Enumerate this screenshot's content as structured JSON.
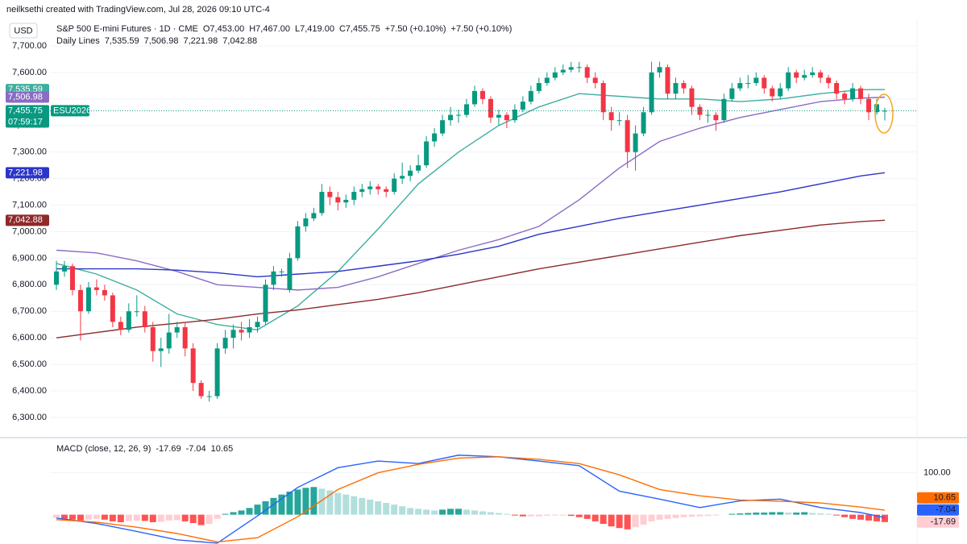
{
  "header": {
    "credit": "neilksethi created with TradingView.com, Jul 28, 2026 09:10 UTC-4"
  },
  "chart_data": [
    {
      "type": "candlestick",
      "currency": "USD",
      "title": "S&P 500 E-mini Futures · 1D · CME",
      "ohlc_legend": [
        "O7,453.00",
        "H7,467.00",
        "L7,419.00",
        "C7,455.75"
      ],
      "change": [
        "+7.50 (+0.10%)",
        "+7.50 (+0.10%)"
      ],
      "up_color": "#089981",
      "down_color": "#f23645",
      "ohlc": [
        [
          6800,
          6890,
          6780,
          6850
        ],
        [
          6850,
          6890,
          6830,
          6870
        ],
        [
          6870,
          6880,
          6760,
          6780
        ],
        [
          6780,
          6800,
          6590,
          6700
        ],
        [
          6700,
          6810,
          6690,
          6790
        ],
        [
          6790,
          6820,
          6760,
          6780
        ],
        [
          6780,
          6800,
          6740,
          6760
        ],
        [
          6760,
          6770,
          6640,
          6660
        ],
        [
          6660,
          6680,
          6610,
          6630
        ],
        [
          6630,
          6730,
          6620,
          6700
        ],
        [
          6700,
          6760,
          6680,
          6700
        ],
        [
          6700,
          6720,
          6620,
          6640
        ],
        [
          6640,
          6660,
          6510,
          6550
        ],
        [
          6550,
          6600,
          6490,
          6560
        ],
        [
          6560,
          6690,
          6540,
          6620
        ],
        [
          6620,
          6660,
          6600,
          6640
        ],
        [
          6640,
          6660,
          6530,
          6560
        ],
        [
          6560,
          6580,
          6400,
          6430
        ],
        [
          6430,
          6440,
          6370,
          6380
        ],
        [
          6380,
          6400,
          6360,
          6380
        ],
        [
          6380,
          6580,
          6370,
          6560
        ],
        [
          6560,
          6630,
          6540,
          6600
        ],
        [
          6600,
          6650,
          6560,
          6630
        ],
        [
          6630,
          6660,
          6590,
          6620
        ],
        [
          6620,
          6670,
          6600,
          6640
        ],
        [
          6640,
          6680,
          6620,
          6660
        ],
        [
          6660,
          6820,
          6650,
          6800
        ],
        [
          6800,
          6870,
          6780,
          6850
        ],
        [
          6850,
          6860,
          6830,
          6850
        ],
        [
          6780,
          6920,
          6770,
          6900
        ],
        [
          6900,
          7040,
          6890,
          7020
        ],
        [
          7020,
          7070,
          7000,
          7050
        ],
        [
          7050,
          7090,
          7040,
          7070
        ],
        [
          7070,
          7180,
          7060,
          7150
        ],
        [
          7150,
          7170,
          7100,
          7130
        ],
        [
          7130,
          7150,
          7080,
          7110
        ],
        [
          7110,
          7140,
          7090,
          7120
        ],
        [
          7120,
          7170,
          7100,
          7150
        ],
        [
          7150,
          7180,
          7130,
          7160
        ],
        [
          7160,
          7190,
          7140,
          7170
        ],
        [
          7170,
          7180,
          7140,
          7160
        ],
        [
          7160,
          7170,
          7130,
          7150
        ],
        [
          7150,
          7220,
          7140,
          7200
        ],
        [
          7200,
          7260,
          7180,
          7210
        ],
        [
          7210,
          7250,
          7190,
          7230
        ],
        [
          7230,
          7290,
          7220,
          7250
        ],
        [
          7250,
          7360,
          7240,
          7340
        ],
        [
          7340,
          7390,
          7320,
          7370
        ],
        [
          7370,
          7440,
          7360,
          7420
        ],
        [
          7420,
          7470,
          7400,
          7440
        ],
        [
          7440,
          7460,
          7410,
          7440
        ],
        [
          7440,
          7500,
          7430,
          7480
        ],
        [
          7480,
          7550,
          7470,
          7530
        ],
        [
          7530,
          7540,
          7480,
          7500
        ],
        [
          7500,
          7510,
          7410,
          7430
        ],
        [
          7430,
          7460,
          7400,
          7440
        ],
        [
          7440,
          7450,
          7390,
          7420
        ],
        [
          7420,
          7480,
          7410,
          7460
        ],
        [
          7460,
          7510,
          7450,
          7490
        ],
        [
          7490,
          7550,
          7480,
          7530
        ],
        [
          7530,
          7580,
          7520,
          7560
        ],
        [
          7560,
          7600,
          7550,
          7580
        ],
        [
          7580,
          7620,
          7570,
          7600
        ],
        [
          7600,
          7630,
          7590,
          7610
        ],
        [
          7610,
          7640,
          7600,
          7620
        ],
        [
          7620,
          7640,
          7600,
          7620
        ],
        [
          7620,
          7630,
          7560,
          7580
        ],
        [
          7580,
          7600,
          7540,
          7560
        ],
        [
          7560,
          7570,
          7420,
          7450
        ],
        [
          7450,
          7470,
          7380,
          7420
        ],
        [
          7420,
          7450,
          7400,
          7420
        ],
        [
          7420,
          7440,
          7240,
          7300
        ],
        [
          7300,
          7400,
          7230,
          7370
        ],
        [
          7370,
          7470,
          7360,
          7450
        ],
        [
          7450,
          7640,
          7440,
          7600
        ],
        [
          7600,
          7640,
          7580,
          7620
        ],
        [
          7620,
          7630,
          7500,
          7520
        ],
        [
          7520,
          7580,
          7500,
          7560
        ],
        [
          7560,
          7570,
          7520,
          7540
        ],
        [
          7540,
          7550,
          7440,
          7470
        ],
        [
          7470,
          7480,
          7420,
          7440
        ],
        [
          7440,
          7460,
          7410,
          7440
        ],
        [
          7440,
          7450,
          7380,
          7420
        ],
        [
          7420,
          7520,
          7410,
          7500
        ],
        [
          7500,
          7560,
          7490,
          7540
        ],
        [
          7540,
          7580,
          7530,
          7560
        ],
        [
          7560,
          7590,
          7540,
          7560
        ],
        [
          7560,
          7600,
          7550,
          7580
        ],
        [
          7580,
          7590,
          7520,
          7540
        ],
        [
          7540,
          7550,
          7490,
          7510
        ],
        [
          7510,
          7560,
          7500,
          7540
        ],
        [
          7540,
          7620,
          7530,
          7600
        ],
        [
          7600,
          7610,
          7560,
          7580
        ],
        [
          7580,
          7610,
          7570,
          7590
        ],
        [
          7590,
          7620,
          7580,
          7600
        ],
        [
          7600,
          7610,
          7560,
          7580
        ],
        [
          7580,
          7590,
          7540,
          7560
        ],
        [
          7560,
          7570,
          7500,
          7520
        ],
        [
          7520,
          7530,
          7480,
          7500
        ],
        [
          7500,
          7560,
          7490,
          7540
        ],
        [
          7540,
          7550,
          7480,
          7500
        ],
        [
          7500,
          7520,
          7420,
          7450
        ],
        [
          7450,
          7500,
          7440,
          7480
        ],
        [
          7453,
          7467,
          7419,
          7455.75
        ]
      ],
      "last_label": "7,455.75",
      "symbol": "ESU2026",
      "countdown": "07:59:17",
      "ylim": [
        6233,
        7797
      ],
      "yticks": [
        {
          "value": 7700,
          "label": "7,700.00"
        },
        {
          "value": 7600,
          "label": "7,600.00"
        },
        {
          "value": 7500,
          "label": "7,500.00"
        },
        {
          "value": 7400,
          "label": "7,400.00"
        },
        {
          "value": 7300,
          "label": "7,300.00"
        },
        {
          "value": 7200,
          "label": "7,200.00"
        },
        {
          "value": 7100,
          "label": "7,100.00"
        },
        {
          "value": 7000,
          "label": "7,000.00"
        },
        {
          "value": 6900,
          "label": "6,900.00"
        },
        {
          "value": 6800,
          "label": "6,800.00"
        },
        {
          "value": 6700,
          "label": "6,700.00"
        },
        {
          "value": 6600,
          "label": "6,600.00"
        },
        {
          "value": 6500,
          "label": "6,500.00"
        },
        {
          "value": 6400,
          "label": "6,400.00"
        },
        {
          "value": 6300,
          "label": "6,300.00"
        }
      ],
      "grid": true,
      "indicator_name": "Daily Lines",
      "x": [
        0,
        5,
        10,
        15,
        20,
        25,
        30,
        35,
        40,
        45,
        50,
        55,
        60,
        65,
        70,
        75,
        80,
        85,
        90,
        95,
        100,
        103
      ],
      "series": [
        {
          "color": "#3fae9f",
          "last_label": "7,535.59",
          "values": [
            6880,
            6840,
            6780,
            6690,
            6650,
            6630,
            6720,
            6850,
            7010,
            7180,
            7300,
            7400,
            7470,
            7520,
            7510,
            7500,
            7500,
            7490,
            7500,
            7520,
            7535,
            7535.59
          ]
        },
        {
          "color": "#8a6cc4",
          "last_label": "7,506.98",
          "values": [
            6930,
            6920,
            6890,
            6850,
            6800,
            6790,
            6780,
            6790,
            6830,
            6880,
            6930,
            6970,
            7020,
            7120,
            7240,
            7340,
            7390,
            7430,
            7460,
            7490,
            7503,
            7506.98
          ]
        },
        {
          "color": "#2b35c9",
          "last_label": "7,221.98",
          "values": [
            6860,
            6860,
            6860,
            6855,
            6845,
            6830,
            6840,
            6850,
            6870,
            6890,
            6915,
            6945,
            6990,
            7020,
            7050,
            7075,
            7100,
            7125,
            7150,
            7180,
            7210,
            7221.98
          ]
        },
        {
          "color": "#8e2a2a",
          "last_label": "7,042.88",
          "values": [
            6600,
            6620,
            6640,
            6655,
            6670,
            6690,
            6705,
            6725,
            6745,
            6770,
            6800,
            6830,
            6860,
            6885,
            6910,
            6935,
            6960,
            6985,
            7005,
            7025,
            7038,
            7042.88
          ]
        }
      ]
    },
    {
      "type": "macd",
      "title": "MACD (close, 12, 26, 9)",
      "ylim": [
        -70,
        180
      ],
      "yticks": [
        {
          "value": 100,
          "label": "100.00"
        }
      ],
      "histogram": {
        "last_label": "-17.69",
        "colors": [
          "#26a69a",
          "#b2dfdb",
          "#ff5252",
          "#ffcdd2"
        ],
        "values": [
          -8,
          -10,
          -12,
          -14,
          -12,
          -10,
          -12,
          -16,
          -18,
          -15,
          -14,
          -15,
          -18,
          -17,
          -14,
          -13,
          -16,
          -20,
          -25,
          -22,
          -10,
          2,
          6,
          10,
          16,
          24,
          32,
          40,
          48,
          55,
          60,
          64,
          66,
          62,
          58,
          52,
          48,
          44,
          40,
          36,
          32,
          28,
          24,
          20,
          16,
          14,
          12,
          10,
          12,
          14,
          14,
          12,
          10,
          8,
          6,
          4,
          2,
          -2,
          -4,
          -4,
          -4,
          -3,
          -2,
          -2,
          -3,
          -6,
          -10,
          -16,
          -22,
          -28,
          -32,
          -35,
          -30,
          -24,
          -16,
          -12,
          -10,
          -8,
          -6,
          -5,
          -4,
          -3,
          -2,
          0,
          2,
          3,
          4,
          5,
          5,
          6,
          6,
          5,
          5,
          6,
          4,
          3,
          2,
          -2,
          -6,
          -10,
          -12,
          -14,
          -16,
          -17.69
        ]
      },
      "x": [
        0,
        5,
        10,
        15,
        20,
        25,
        30,
        35,
        40,
        45,
        50,
        55,
        60,
        65,
        70,
        75,
        80,
        85,
        90,
        95,
        100,
        103
      ],
      "series": [
        {
          "color": "#2962ff",
          "last_label": "-7.04",
          "values": [
            -8,
            -21,
            -40,
            -60,
            -68,
            -3,
            65,
            112,
            128,
            122,
            142,
            138,
            128,
            117,
            56,
            37,
            17,
            33,
            37,
            17,
            5,
            -7.04
          ]
        },
        {
          "color": "#ff6d00",
          "last_label": "10.65",
          "values": [
            -12,
            -18,
            -30,
            -45,
            -65,
            -55,
            -5,
            60,
            100,
            120,
            135,
            138,
            132,
            122,
            95,
            60,
            45,
            35,
            32,
            28,
            18,
            10.65
          ]
        }
      ]
    }
  ]
}
